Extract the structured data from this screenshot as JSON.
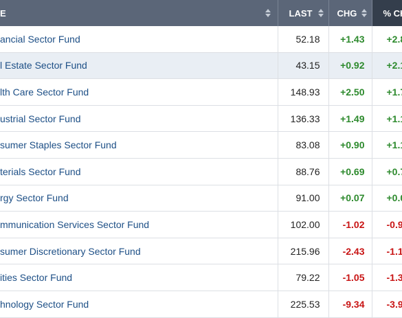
{
  "table": {
    "headers": [
      "E",
      "LAST",
      "CHG",
      "% CH"
    ],
    "rows": [
      [
        "ancial Sector Fund",
        "52.18",
        "+1.43",
        "+2.8"
      ],
      [
        "l Estate Sector Fund",
        "43.15",
        "+0.92",
        "+2.1"
      ],
      [
        "lth Care Sector Fund",
        "148.93",
        "+2.50",
        "+1.7"
      ],
      [
        "ustrial Sector Fund",
        "136.33",
        "+1.49",
        "+1.1"
      ],
      [
        "sumer Staples Sector Fund",
        "83.08",
        "+0.90",
        "+1.1"
      ],
      [
        "terials Sector Fund",
        "88.76",
        "+0.69",
        "+0.7"
      ],
      [
        "rgy Sector Fund",
        "91.00",
        "+0.07",
        "+0.0"
      ],
      [
        "mmunication Services Sector Fund",
        "102.00",
        "-1.02",
        "-0.9"
      ],
      [
        "sumer Discretionary Sector Fund",
        "215.96",
        "-2.43",
        "-1.1"
      ],
      [
        "ities Sector Fund",
        "79.22",
        "-1.05",
        "-1.3"
      ],
      [
        "hnology Sector Fund",
        "225.53",
        "-9.34",
        "-3.9"
      ]
    ]
  }
}
